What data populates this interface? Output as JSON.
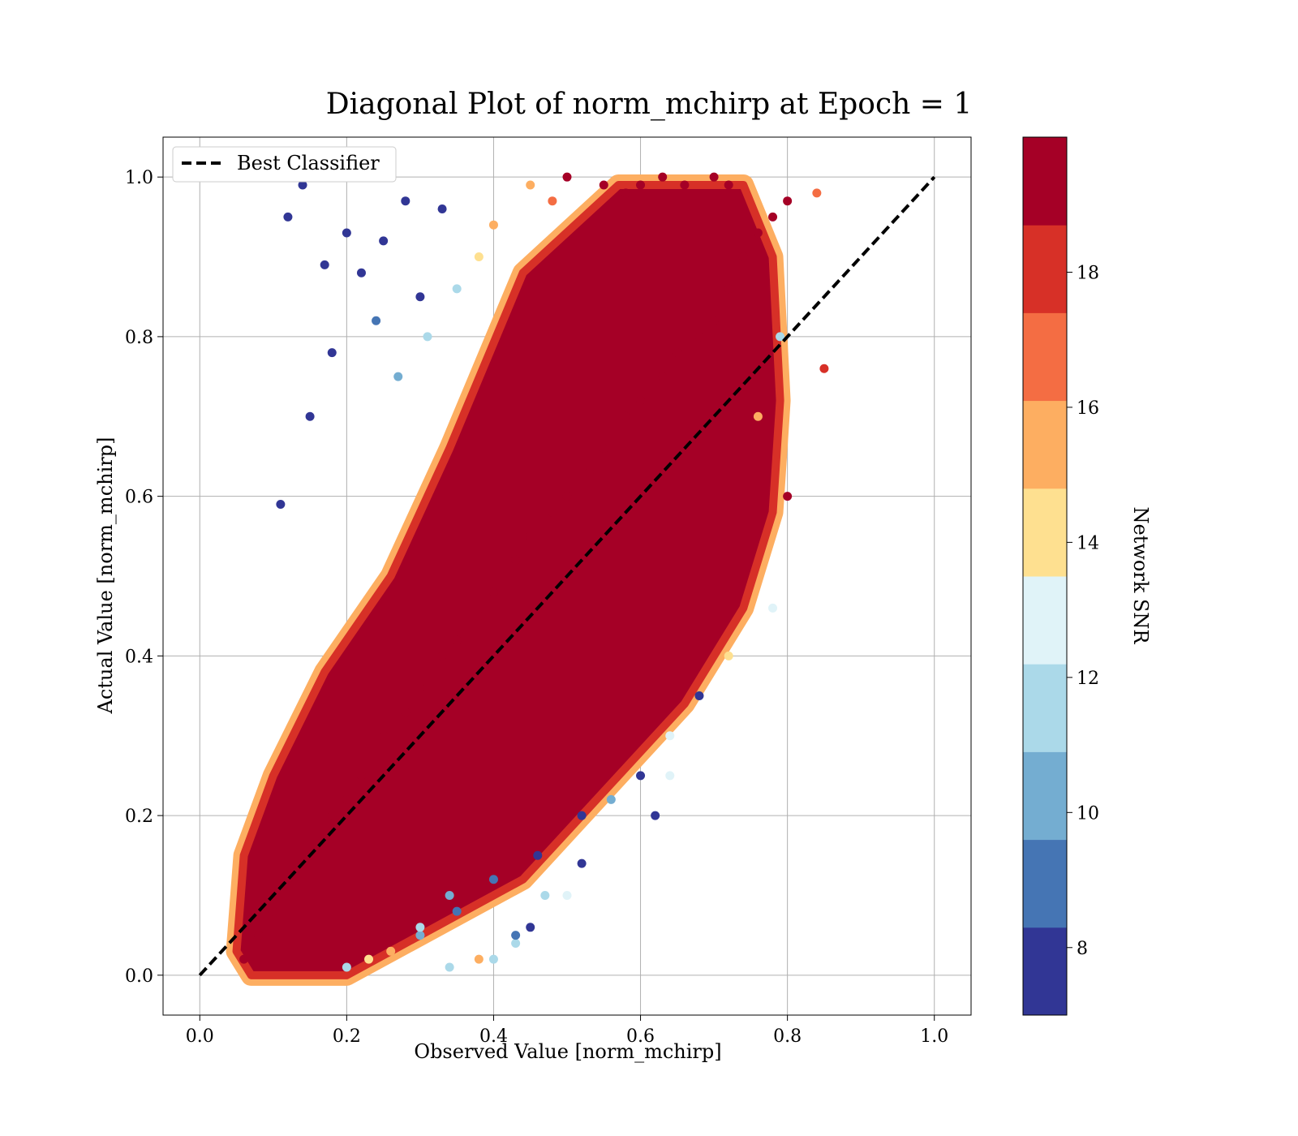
{
  "chart_data": {
    "type": "scatter",
    "title": "Diagonal Plot of norm_mchirp at Epoch = 1",
    "xlabel": "Observed Value [norm_mchirp]",
    "ylabel": "Actual Value [norm_mchirp]",
    "xlim": [
      -0.05,
      1.05
    ],
    "ylim": [
      -0.05,
      1.05
    ],
    "x_ticks": [
      0.0,
      0.2,
      0.4,
      0.6,
      0.8,
      1.0
    ],
    "y_ticks": [
      0.0,
      0.2,
      0.4,
      0.6,
      0.8,
      1.0
    ],
    "x_tick_labels": [
      "0.0",
      "0.2",
      "0.4",
      "0.6",
      "0.8",
      "1.0"
    ],
    "y_tick_labels": [
      "0.0",
      "0.2",
      "0.4",
      "0.6",
      "0.8",
      "1.0"
    ],
    "grid": true,
    "legend": {
      "placement": "upper-left",
      "entries": [
        {
          "label": "Best Classifier",
          "style": "dashed",
          "color": "#000000"
        }
      ]
    },
    "reference_line": {
      "name": "Best Classifier",
      "x": [
        0.0,
        1.0
      ],
      "y": [
        0.0,
        1.0
      ]
    },
    "colorbar": {
      "label": "Network SNR",
      "range": [
        7,
        20
      ],
      "ticks": [
        8,
        10,
        12,
        14,
        16,
        18
      ],
      "tick_labels": [
        "8",
        "10",
        "12",
        "14",
        "16",
        "18"
      ],
      "colors": [
        "#313695",
        "#4575b4",
        "#74add1",
        "#abd9e9",
        "#e0f3f8",
        "#fee090",
        "#fdae61",
        "#f46d43",
        "#d73027",
        "#a50026"
      ]
    },
    "series": [
      {
        "color_variable": "Network SNR",
        "x": [
          0.06,
          0.08,
          0.1,
          0.12,
          0.15,
          0.18,
          0.2,
          0.22,
          0.25,
          0.28,
          0.3,
          0.33,
          0.35,
          0.38,
          0.4,
          0.43,
          0.45,
          0.48,
          0.5,
          0.53,
          0.55,
          0.58,
          0.6,
          0.63,
          0.65,
          0.68,
          0.7,
          0.72,
          0.74,
          0.76,
          0.78,
          0.8,
          0.84,
          0.85,
          0.14,
          0.12,
          0.17,
          0.2,
          0.22,
          0.25,
          0.28,
          0.3,
          0.33,
          0.11,
          0.15,
          0.18,
          0.24,
          0.27,
          0.31,
          0.35,
          0.38,
          0.4,
          0.45,
          0.48,
          0.5,
          0.55,
          0.58,
          0.6,
          0.63,
          0.66,
          0.7,
          0.72,
          0.3,
          0.35,
          0.4,
          0.43,
          0.45,
          0.5,
          0.52,
          0.2,
          0.23,
          0.26,
          0.3,
          0.34,
          0.4,
          0.46,
          0.52,
          0.56,
          0.6,
          0.64,
          0.68,
          0.72,
          0.78,
          0.8,
          0.79,
          0.76,
          0.62,
          0.64,
          0.47,
          0.43,
          0.38,
          0.34
        ],
        "y": [
          0.02,
          0.05,
          0.08,
          0.12,
          0.15,
          0.2,
          0.22,
          0.25,
          0.3,
          0.33,
          0.36,
          0.4,
          0.42,
          0.45,
          0.48,
          0.52,
          0.55,
          0.58,
          0.6,
          0.63,
          0.66,
          0.7,
          0.72,
          0.75,
          0.78,
          0.8,
          0.82,
          0.86,
          0.9,
          0.93,
          0.95,
          0.97,
          0.98,
          0.76,
          0.99,
          0.95,
          0.89,
          0.93,
          0.88,
          0.92,
          0.97,
          0.85,
          0.96,
          0.59,
          0.7,
          0.78,
          0.82,
          0.75,
          0.8,
          0.86,
          0.9,
          0.94,
          0.99,
          0.97,
          1.0,
          0.99,
          0.98,
          0.99,
          1.0,
          0.99,
          1.0,
          0.99,
          0.05,
          0.08,
          0.02,
          0.04,
          0.06,
          0.1,
          0.14,
          0.01,
          0.02,
          0.03,
          0.06,
          0.1,
          0.12,
          0.15,
          0.2,
          0.22,
          0.25,
          0.3,
          0.35,
          0.4,
          0.46,
          0.6,
          0.8,
          0.7,
          0.2,
          0.25,
          0.1,
          0.05,
          0.02,
          0.01
        ],
        "snr": [
          19,
          19,
          19,
          19,
          19,
          19,
          19,
          19,
          19,
          19,
          19,
          19,
          19,
          19,
          19,
          19,
          19,
          19,
          19,
          19,
          19,
          19,
          19,
          19,
          19,
          19,
          19,
          19,
          19,
          19,
          19,
          19,
          17,
          18,
          8,
          8,
          8,
          8,
          8,
          8,
          8,
          8,
          8,
          8,
          8,
          8,
          9,
          10,
          11,
          12,
          14,
          16,
          15,
          17,
          19,
          19,
          19,
          19,
          19,
          19,
          19,
          19,
          10,
          9,
          11,
          12,
          8,
          13,
          8,
          12,
          14,
          15,
          11,
          10,
          9,
          8,
          8,
          10,
          8,
          13,
          8,
          14,
          13,
          19,
          12,
          15,
          8,
          13,
          11,
          9,
          15,
          12
        ]
      }
    ]
  }
}
